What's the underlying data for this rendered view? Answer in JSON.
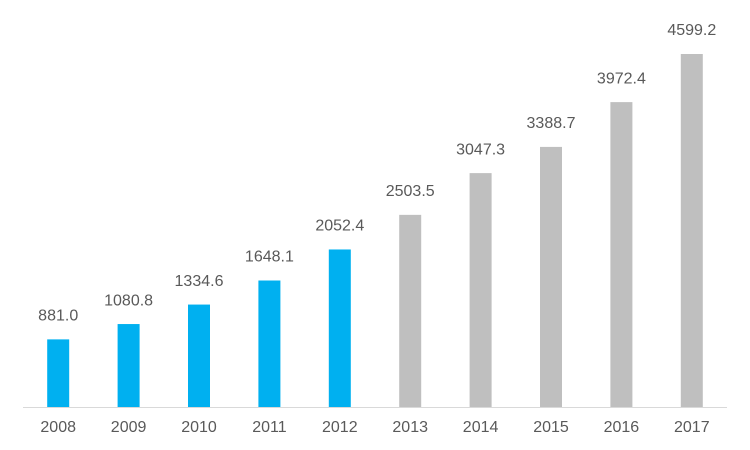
{
  "chart_data": {
    "type": "bar",
    "categories": [
      "2008",
      "2009",
      "2010",
      "2011",
      "2012",
      "2013",
      "2014",
      "2015",
      "2016",
      "2017"
    ],
    "values": [
      881.0,
      1080.8,
      1334.6,
      1648.1,
      2052.4,
      2503.5,
      3047.3,
      3388.7,
      3972.4,
      4599.2
    ],
    "value_labels": [
      "881.0",
      "1080.8",
      "1334.6",
      "1648.1",
      "2052.4",
      "2503.5",
      "3047.3",
      "3388.7",
      "3972.4",
      "4599.2"
    ],
    "colors": [
      "#00b0f0",
      "#00b0f0",
      "#00b0f0",
      "#00b0f0",
      "#00b0f0",
      "#bfbfbf",
      "#bfbfbf",
      "#bfbfbf",
      "#bfbfbf",
      "#bfbfbf"
    ]
  }
}
